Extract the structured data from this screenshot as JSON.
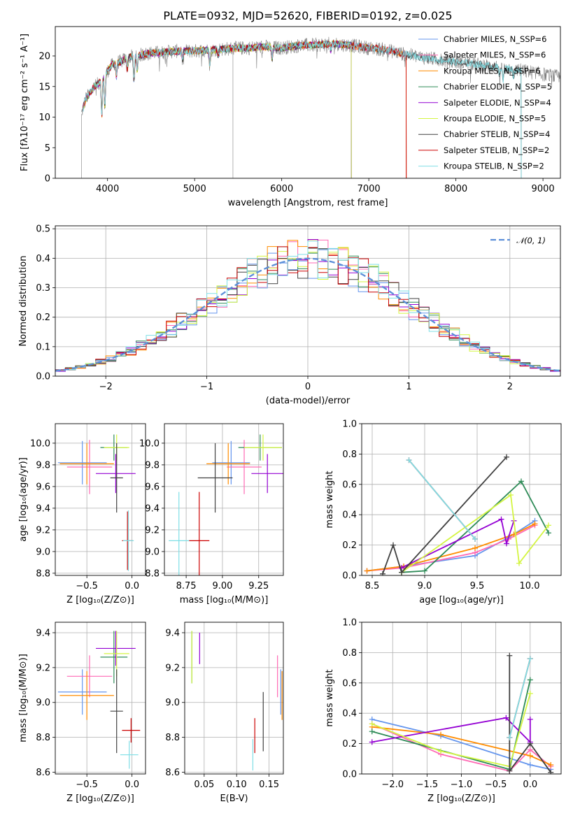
{
  "figure_title": "PLATE=0932, MJD=52620, FIBERID=0192, z=0.025",
  "chart_data": [
    {
      "id": "spectrum",
      "type": "line",
      "title": "PLATE=0932, MJD=52620, FIBERID=0192, z=0.025",
      "xlabel": "wavelength [Angstrom, rest frame]",
      "ylabel": "Flux [fλ10⁻¹⁷ erg cm⁻² s⁻¹ A⁻¹]",
      "xlim": [
        3400,
        9200
      ],
      "ylim": [
        0,
        24.8
      ],
      "xticks": [
        4000,
        5000,
        6000,
        7000,
        8000,
        9000
      ],
      "yticks": [
        0,
        5,
        10,
        15,
        20
      ],
      "xtick_labels": [
        "4000",
        "5000",
        "6000",
        "7000",
        "8000",
        "9000"
      ],
      "ytick_labels": [
        "0",
        "5",
        "10",
        "15",
        "20"
      ],
      "grid": false,
      "legend_position": "upper-right",
      "data_continuum": {
        "x": [
          3700,
          3750,
          3800,
          3850,
          3900,
          3950,
          4000,
          4050,
          4100,
          4150,
          4200,
          4300,
          4400,
          4500,
          4600,
          4700,
          4800,
          5000,
          5200,
          5400,
          5600,
          5800,
          6000,
          6200,
          6400,
          6600,
          6800,
          7000,
          7200,
          7400,
          7600,
          7800,
          8000,
          8200,
          8400,
          8600,
          8800,
          9000,
          9200
        ],
        "y": [
          10.5,
          13.0,
          14.0,
          15.0,
          15.5,
          16.5,
          17.5,
          18.5,
          19.0,
          19.0,
          19.5,
          20.0,
          20.2,
          20.5,
          20.5,
          20.7,
          20.8,
          20.8,
          21.0,
          21.2,
          21.3,
          21.5,
          21.3,
          21.7,
          21.8,
          22.0,
          21.7,
          21.3,
          21.0,
          20.3,
          19.8,
          19.4,
          19.0,
          18.7,
          18.3,
          18.0,
          17.5,
          17.0,
          16.5
        ]
      },
      "absorption_features": [
        {
          "x": 3934,
          "depth": 6.0
        },
        {
          "x": 3969,
          "depth": 5.5
        },
        {
          "x": 4102,
          "depth": 2.5
        },
        {
          "x": 4227,
          "depth": 2.0
        },
        {
          "x": 4304,
          "depth": 4.0
        },
        {
          "x": 4341,
          "depth": 2.5
        },
        {
          "x": 4861,
          "depth": 1.5
        },
        {
          "x": 5175,
          "depth": 2.5
        },
        {
          "x": 5270,
          "depth": 1.0
        },
        {
          "x": 5890,
          "depth": 2.0
        },
        {
          "x": 6563,
          "depth": 1.0
        },
        {
          "x": 8498,
          "depth": 1.5
        },
        {
          "x": 8542,
          "depth": 2.0
        },
        {
          "x": 8662,
          "depth": 1.5
        }
      ],
      "data_spikes": [
        {
          "x": 3700,
          "y": 0
        },
        {
          "x": 5440,
          "y": 0
        },
        {
          "x": 6800,
          "y": 0
        }
      ],
      "model_series": [
        {
          "name": "Chabrier MILES, N_SSP=6",
          "color": "#6495ed",
          "x_end": 7430
        },
        {
          "name": "Salpeter MILES, N_SSP=6",
          "color": "#ff69b4",
          "x_end": 7430
        },
        {
          "name": "Kroupa MILES, N_SSP=6",
          "color": "#ff8c00",
          "x_end": 7430
        },
        {
          "name": "Chabrier ELODIE, N_SSP=5",
          "color": "#2e8b57",
          "x_end": 6800
        },
        {
          "name": "Salpeter ELODIE, N_SSP=4",
          "color": "#9400d3",
          "x_end": 6800
        },
        {
          "name": "Kroupa ELODIE, N_SSP=5",
          "color": "#d4f542",
          "x_end": 6800
        },
        {
          "name": "Chabrier STELIB, N_SSP=4",
          "color": "#404040",
          "x_end": 8750
        },
        {
          "name": "Salpeter STELIB, N_SSP=2",
          "color": "#cc0000",
          "x_end": 7430
        },
        {
          "name": "Kroupa STELIB, N_SSP=2",
          "color": "#7fdfe6",
          "x_end": 8750
        }
      ]
    },
    {
      "id": "residuals",
      "type": "line",
      "xlabel": "(data-model)/error",
      "ylabel": "Normed distribution",
      "xlim": [
        -2.5,
        2.5
      ],
      "ylim": [
        0,
        0.51
      ],
      "xticks": [
        -2,
        -1,
        0,
        1,
        2
      ],
      "yticks": [
        0.0,
        0.1,
        0.2,
        0.3,
        0.4,
        0.5
      ],
      "xtick_labels": [
        "−2",
        "−1",
        "0",
        "1",
        "2"
      ],
      "ytick_labels": [
        "0.0",
        "0.1",
        "0.2",
        "0.3",
        "0.4",
        "0.5"
      ],
      "grid": true,
      "legend_position": "upper-right",
      "reference_curve": {
        "name": "𝒩(0, 1)",
        "mean": 0,
        "sigma": 1,
        "color": "#5b8ed8"
      },
      "histogram_bin_width": 0.1
    },
    {
      "id": "age_vs_Z",
      "type": "scatter",
      "xlabel": "Z [log₁₀(Z/Z⊙)]",
      "ylabel": "age  [log₁₀(age/yr)]",
      "xlim": [
        -0.85,
        0.15
      ],
      "ylim": [
        8.78,
        10.18
      ],
      "xticks": [
        -0.5,
        0.0
      ],
      "yticks": [
        8.8,
        9.0,
        9.2,
        9.4,
        9.6,
        9.8,
        10.0
      ],
      "xtick_labels": [
        "−0.5",
        "0.0"
      ],
      "ytick_labels": [
        "8.8",
        "9.0",
        "9.2",
        "9.4",
        "9.6",
        "9.8",
        "10.0"
      ],
      "grid": true,
      "points": [
        {
          "x": -0.55,
          "y": 9.82,
          "xerr": 0.27,
          "yerr": 0.2,
          "color": "#6495ed"
        },
        {
          "x": -0.47,
          "y": 9.78,
          "xerr": 0.25,
          "yerr": 0.25,
          "color": "#ff69b4"
        },
        {
          "x": -0.5,
          "y": 9.81,
          "xerr": 0.3,
          "yerr": 0.19,
          "color": "#ff8c00"
        },
        {
          "x": -0.2,
          "y": 9.96,
          "xerr": 0.15,
          "yerr": 0.12,
          "color": "#2e8b57"
        },
        {
          "x": -0.18,
          "y": 9.72,
          "xerr": 0.22,
          "yerr": 0.18,
          "color": "#9400d3"
        },
        {
          "x": -0.17,
          "y": 9.96,
          "xerr": 0.14,
          "yerr": 0.12,
          "color": "#d4f542"
        },
        {
          "x": -0.17,
          "y": 9.68,
          "xerr": 0.07,
          "yerr": 0.32,
          "color": "#404040"
        },
        {
          "x": -0.05,
          "y": 9.1,
          "xerr": 0.06,
          "yerr": 0.27,
          "color": "#cc0000"
        },
        {
          "x": -0.04,
          "y": 9.1,
          "xerr": 0.06,
          "yerr": 0.28,
          "color": "#7fdfe6"
        }
      ]
    },
    {
      "id": "age_vs_mass",
      "type": "scatter",
      "xlabel": "mass [log₁₀(M/M⊙)]",
      "ylabel": "",
      "xlim": [
        8.6,
        9.42
      ],
      "ylim": [
        8.78,
        10.18
      ],
      "xticks": [
        8.75,
        9.0,
        9.25
      ],
      "yticks": [
        8.8,
        9.0,
        9.2,
        9.4,
        9.6,
        9.8,
        10.0
      ],
      "xtick_labels": [
        "8.75",
        "9.00",
        "9.25"
      ],
      "ytick_labels": [
        "8.8",
        "9.0",
        "9.2",
        "9.4",
        "9.6",
        "9.8",
        "10.0"
      ],
      "grid": true,
      "points": [
        {
          "x": 9.06,
          "y": 9.82,
          "xerr": 0.13,
          "yerr": 0.2,
          "color": "#6495ed"
        },
        {
          "x": 9.15,
          "y": 9.78,
          "xerr": 0.12,
          "yerr": 0.25,
          "color": "#ff69b4"
        },
        {
          "x": 9.04,
          "y": 9.81,
          "xerr": 0.15,
          "yerr": 0.19,
          "color": "#ff8c00"
        },
        {
          "x": 9.26,
          "y": 9.96,
          "xerr": 0.15,
          "yerr": 0.12,
          "color": "#2e8b57"
        },
        {
          "x": 9.31,
          "y": 9.72,
          "xerr": 0.11,
          "yerr": 0.18,
          "color": "#9400d3"
        },
        {
          "x": 9.28,
          "y": 9.96,
          "xerr": 0.13,
          "yerr": 0.12,
          "color": "#d4f542"
        },
        {
          "x": 8.95,
          "y": 9.68,
          "xerr": 0.12,
          "yerr": 0.32,
          "color": "#404040"
        },
        {
          "x": 8.84,
          "y": 9.1,
          "xerr": 0.07,
          "yerr": 0.45,
          "color": "#cc0000"
        },
        {
          "x": 8.7,
          "y": 9.1,
          "xerr": 0.07,
          "yerr": 0.45,
          "color": "#7fdfe6"
        }
      ]
    },
    {
      "id": "weight_vs_age",
      "type": "line",
      "xlabel": "age  [log₁₀(age/yr)]",
      "ylabel": "mass weight",
      "xlim": [
        8.4,
        10.3
      ],
      "ylim": [
        0,
        1
      ],
      "xticks": [
        8.5,
        9.0,
        9.5,
        10.0
      ],
      "yticks": [
        0.0,
        0.2,
        0.4,
        0.6,
        0.8,
        1.0
      ],
      "xtick_labels": [
        "8.5",
        "9.0",
        "9.5",
        "10.0"
      ],
      "ytick_labels": [
        "0.0",
        "0.2",
        "0.4",
        "0.6",
        "0.8",
        "1.0"
      ],
      "grid": true,
      "series": [
        {
          "name": "Chabrier MILES",
          "color": "#6495ed",
          "x": [
            8.45,
            8.8,
            9.48,
            9.8,
            10.05
          ],
          "y": [
            0.03,
            0.06,
            0.13,
            0.25,
            0.36
          ]
        },
        {
          "name": "Salpeter MILES",
          "color": "#ff69b4",
          "x": [
            8.45,
            8.8,
            9.48,
            9.8,
            10.05
          ],
          "y": [
            0.03,
            0.05,
            0.15,
            0.24,
            0.33
          ]
        },
        {
          "name": "Kroupa MILES",
          "color": "#ff8c00",
          "x": [
            8.45,
            8.8,
            9.48,
            9.85,
            10.05
          ],
          "y": [
            0.03,
            0.06,
            0.18,
            0.27,
            0.34
          ]
        },
        {
          "name": "Chabrier ELODIE",
          "color": "#2e8b57",
          "x": [
            8.78,
            9.0,
            9.92,
            10.18
          ],
          "y": [
            0.02,
            0.03,
            0.62,
            0.28
          ]
        },
        {
          "name": "Salpeter ELODIE",
          "color": "#9400d3",
          "x": [
            8.78,
            9.73,
            9.78,
            9.85
          ],
          "y": [
            0.05,
            0.37,
            0.21,
            0.36
          ]
        },
        {
          "name": "Kroupa ELODIE",
          "color": "#d4f542",
          "x": [
            8.78,
            9.82,
            9.9,
            10.18
          ],
          "y": [
            0.02,
            0.53,
            0.08,
            0.33
          ]
        },
        {
          "name": "Chabrier STELIB",
          "color": "#404040",
          "x": [
            8.6,
            8.7,
            8.78,
            9.78
          ],
          "y": [
            0.01,
            0.2,
            0.02,
            0.78
          ]
        },
        {
          "name": "Salpeter STELIB",
          "color": "#cc0000",
          "x": [
            8.85,
            9.48
          ],
          "y": [
            0.76,
            0.24
          ]
        },
        {
          "name": "Kroupa STELIB",
          "color": "#7fdfe6",
          "x": [
            8.85,
            9.48
          ],
          "y": [
            0.76,
            0.24
          ]
        }
      ]
    },
    {
      "id": "mass_vs_Z",
      "type": "scatter",
      "xlabel": "Z [log₁₀(Z/Z⊙)]",
      "ylabel": "mass [log₁₀(M/M⊙)]",
      "xlim": [
        -0.85,
        0.15
      ],
      "ylim": [
        8.59,
        9.46
      ],
      "xticks": [
        -0.5,
        0.0
      ],
      "yticks": [
        8.6,
        8.8,
        9.0,
        9.2,
        9.4
      ],
      "xtick_labels": [
        "−0.5",
        "0.0"
      ],
      "ytick_labels": [
        "8.6",
        "8.8",
        "9.0",
        "9.2",
        "9.4"
      ],
      "grid": true,
      "points": [
        {
          "x": -0.55,
          "y": 9.06,
          "xerr": 0.27,
          "yerr": 0.13,
          "color": "#6495ed"
        },
        {
          "x": -0.47,
          "y": 9.15,
          "xerr": 0.25,
          "yerr": 0.12,
          "color": "#ff69b4"
        },
        {
          "x": -0.5,
          "y": 9.04,
          "xerr": 0.3,
          "yerr": 0.14,
          "color": "#ff8c00"
        },
        {
          "x": -0.2,
          "y": 9.26,
          "xerr": 0.15,
          "yerr": 0.15,
          "color": "#2e8b57"
        },
        {
          "x": -0.18,
          "y": 9.31,
          "xerr": 0.22,
          "yerr": 0.1,
          "color": "#9400d3"
        },
        {
          "x": -0.17,
          "y": 9.28,
          "xerr": 0.14,
          "yerr": 0.13,
          "color": "#d4f542"
        },
        {
          "x": -0.17,
          "y": 8.95,
          "xerr": 0.07,
          "yerr": 0.24,
          "color": "#404040"
        },
        {
          "x": -0.01,
          "y": 8.84,
          "xerr": 0.1,
          "yerr": 0.07,
          "color": "#cc0000"
        },
        {
          "x": -0.03,
          "y": 8.7,
          "xerr": 0.1,
          "yerr": 0.08,
          "color": "#7fdfe6"
        }
      ]
    },
    {
      "id": "mass_vs_ebv",
      "type": "scatter",
      "xlabel": "E(B-V)",
      "ylabel": "",
      "xlim": [
        0.02,
        0.172
      ],
      "ylim": [
        8.59,
        9.46
      ],
      "xticks": [
        0.05,
        0.1,
        0.15
      ],
      "yticks": [
        8.6,
        8.8,
        9.0,
        9.2,
        9.4
      ],
      "xtick_labels": [
        "0.05",
        "0.10",
        "0.15"
      ],
      "ytick_labels": [
        "8.6",
        "8.8",
        "9.0",
        "9.2",
        "9.4"
      ],
      "grid": true,
      "points": [
        {
          "x": 0.168,
          "y": 9.06,
          "yerr": 0.13,
          "color": "#6495ed"
        },
        {
          "x": 0.163,
          "y": 9.15,
          "yerr": 0.12,
          "color": "#ff69b4"
        },
        {
          "x": 0.17,
          "y": 9.04,
          "yerr": 0.14,
          "color": "#ff8c00"
        },
        {
          "x": 0.031,
          "y": 9.26,
          "yerr": 0.15,
          "color": "#2e8b57"
        },
        {
          "x": 0.043,
          "y": 9.31,
          "yerr": 0.09,
          "color": "#9400d3"
        },
        {
          "x": 0.031,
          "y": 9.26,
          "yerr": 0.15,
          "color": "#d4f542"
        },
        {
          "x": 0.141,
          "y": 8.89,
          "yerr": 0.17,
          "color": "#404040"
        },
        {
          "x": 0.128,
          "y": 8.81,
          "yerr": 0.1,
          "color": "#cc0000"
        },
        {
          "x": 0.125,
          "y": 8.7,
          "yerr": 0.09,
          "color": "#7fdfe6"
        }
      ]
    },
    {
      "id": "weight_vs_Z",
      "type": "line",
      "xlabel": "Z [log₁₀(Z/Z⊙)]",
      "ylabel": "mass weight",
      "xlim": [
        -2.45,
        0.45
      ],
      "ylim": [
        0,
        1
      ],
      "xticks": [
        -2.0,
        -1.5,
        -1.0,
        -0.5,
        0.0
      ],
      "yticks": [
        0.0,
        0.2,
        0.4,
        0.6,
        0.8,
        1.0
      ],
      "xtick_labels": [
        "−2.0",
        "−1.5",
        "−1.0",
        "−0.5",
        "0.0"
      ],
      "ytick_labels": [
        "0.0",
        "0.2",
        "0.4",
        "0.6",
        "0.8",
        "1.0"
      ],
      "grid": true,
      "series": [
        {
          "name": "Chabrier MILES",
          "color": "#6495ed",
          "x": [
            -2.3,
            -1.3,
            0.0,
            0.3
          ],
          "y": [
            0.36,
            0.25,
            0.06,
            0.03
          ]
        },
        {
          "name": "Salpeter MILES",
          "color": "#ff69b4",
          "x": [
            -2.3,
            -1.3,
            -0.3,
            0.0,
            0.3
          ],
          "y": [
            0.33,
            0.13,
            0.02,
            0.16,
            0.05
          ]
        },
        {
          "name": "Kroupa MILES",
          "color": "#ff8c00",
          "x": [
            -2.3,
            -1.3,
            0.0,
            0.3
          ],
          "y": [
            0.31,
            0.26,
            0.12,
            0.06
          ]
        },
        {
          "name": "Chabrier ELODIE",
          "color": "#2e8b57",
          "x": [
            -2.3,
            -0.3,
            0.0
          ],
          "y": [
            0.28,
            0.03,
            0.62
          ]
        },
        {
          "name": "Salpeter ELODIE",
          "color": "#9400d3",
          "x": [
            -2.3,
            -0.35,
            0.0,
            0.0
          ],
          "y": [
            0.21,
            0.37,
            0.21,
            0.36
          ]
        },
        {
          "name": "Kroupa ELODIE",
          "color": "#d4f542",
          "x": [
            -2.3,
            -1.3,
            -0.3,
            0.0
          ],
          "y": [
            0.33,
            0.15,
            0.05,
            0.53
          ]
        },
        {
          "name": "Chabrier STELIB",
          "color": "#404040",
          "x": [
            -0.3,
            -0.3,
            0.0,
            0.3
          ],
          "y": [
            0.78,
            0.02,
            0.2,
            0.01
          ]
        },
        {
          "name": "Salpeter STELIB",
          "color": "#cc0000",
          "x": [
            -0.3,
            0.0
          ],
          "y": [
            0.24,
            0.76
          ]
        },
        {
          "name": "Kroupa STELIB",
          "color": "#7fdfe6",
          "x": [
            -0.3,
            0.0
          ],
          "y": [
            0.24,
            0.76
          ]
        }
      ]
    }
  ]
}
